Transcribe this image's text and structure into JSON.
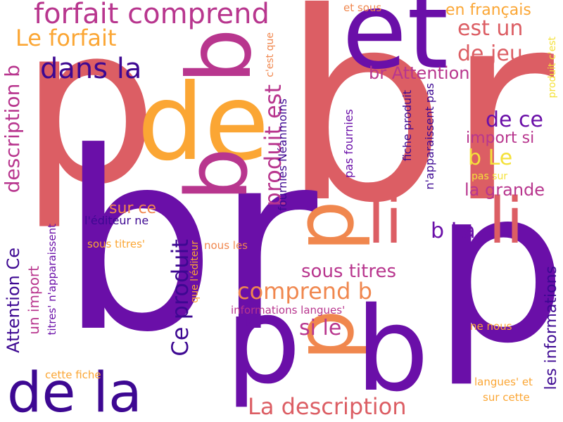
{
  "colors": {
    "coral": "#DC5E64",
    "purple": "#6A0FA8",
    "indigo": "#3D0892",
    "magenta": "#B8368E",
    "orange": "#F0874E",
    "amber": "#FBA634",
    "yellow": "#F4E13A",
    "deep_purple": "#7A149F"
  },
  "words": [
    {
      "id": "w-br-big",
      "text": "br"
    },
    {
      "id": "w-p-big",
      "text": "p"
    },
    {
      "id": "w-br-bottom",
      "text": "br"
    },
    {
      "id": "w-p-right",
      "text": "p"
    },
    {
      "id": "w-et",
      "text": "et"
    },
    {
      "id": "w-de",
      "text": "de"
    },
    {
      "id": "w-b-upper",
      "text": "b"
    },
    {
      "id": "w-b-center",
      "text": "b"
    },
    {
      "id": "w-p-center",
      "text": "p"
    },
    {
      "id": "w-b-lower",
      "text": "b"
    },
    {
      "id": "w-p-lower",
      "text": "p"
    },
    {
      "id": "w-li-left",
      "text": "li"
    },
    {
      "id": "w-li-right",
      "text": "li"
    },
    {
      "id": "w-de-la",
      "text": "de la"
    },
    {
      "id": "w-forfait-comprend",
      "text": "forfait comprend"
    },
    {
      "id": "w-dans-la",
      "text": "dans la"
    },
    {
      "id": "w-le-forfait",
      "text": "Le forfait"
    },
    {
      "id": "w-description-b",
      "text": "description b"
    },
    {
      "id": "w-produit-est",
      "text": "produit est"
    },
    {
      "id": "w-ce-produit",
      "text": "Ce produit"
    },
    {
      "id": "w-comprend-b",
      "text": "comprend b"
    },
    {
      "id": "w-la-description",
      "text": "La description"
    },
    {
      "id": "w-attention-ce",
      "text": "Attention Ce"
    },
    {
      "id": "w-est-un",
      "text": "est un"
    },
    {
      "id": "w-de-jeu",
      "text": "de jeu"
    },
    {
      "id": "w-de-ce",
      "text": "de ce"
    },
    {
      "id": "w-b-le",
      "text": "b Le"
    },
    {
      "id": "w-b-la",
      "text": "b La"
    },
    {
      "id": "w-la-grande",
      "text": "la grande"
    },
    {
      "id": "w-br-attention",
      "text": "br Attention"
    },
    {
      "id": "w-import-si",
      "text": "import si"
    },
    {
      "id": "w-en-francais",
      "text": "en français"
    },
    {
      "id": "w-sous-titres",
      "text": "sous titres"
    },
    {
      "id": "w-si-le",
      "text": "si le"
    },
    {
      "id": "w-un-import",
      "text": "un import"
    },
    {
      "id": "w-sur-ce",
      "text": "sur ce"
    },
    {
      "id": "w-les-informations",
      "text": "les informations"
    },
    {
      "id": "w-et-sous",
      "text": "et sous"
    },
    {
      "id": "w-cest-que",
      "text": "c'est que"
    },
    {
      "id": "w-fournies-neanmoins",
      "text": "fournies Néanmoins"
    },
    {
      "id": "w-pas-fournies",
      "text": "pas fournies"
    },
    {
      "id": "w-fiche-produit",
      "text": "fiche produit"
    },
    {
      "id": "w-napparaissent-pas",
      "text": "n'apparaissent pas"
    },
    {
      "id": "w-produit-cest",
      "text": "produit c'est"
    },
    {
      "id": "w-pas-sur",
      "text": "pas sur"
    },
    {
      "id": "w-lediteur-ne",
      "text": "l'éditeur ne"
    },
    {
      "id": "w-sous-titres-q",
      "text": "sous titres'"
    },
    {
      "id": "w-que-lediteur",
      "text": "que l'éditeur"
    },
    {
      "id": "w-nous-les",
      "text": "nous les"
    },
    {
      "id": "w-titres-napparaissent",
      "text": "titres' n'apparaissent"
    },
    {
      "id": "w-informations-langues",
      "text": "informations langues'"
    },
    {
      "id": "w-ne-nous",
      "text": "ne nous"
    },
    {
      "id": "w-cette-fiche",
      "text": "cette fiche"
    },
    {
      "id": "w-langues-et",
      "text": "langues' et"
    },
    {
      "id": "w-sur-cette",
      "text": "sur cette"
    }
  ]
}
